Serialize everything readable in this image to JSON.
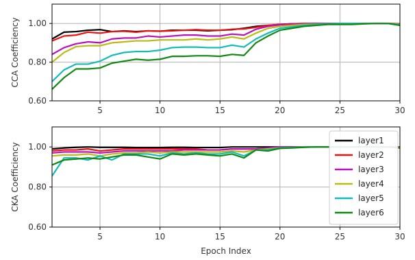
{
  "chart_data": [
    {
      "type": "line",
      "ylabel": "CCA Coefficiency",
      "xlabel": "",
      "xlim": [
        1,
        30
      ],
      "ylim": [
        0.6,
        1.1
      ],
      "xticks": [
        "5",
        "10",
        "15",
        "20",
        "25",
        "30"
      ],
      "xtick_values": [
        5,
        10,
        15,
        20,
        25,
        30
      ],
      "yticks": [
        "0.60",
        "0.80",
        "1.00"
      ],
      "ytick_values": [
        0.6,
        0.8,
        1.0
      ],
      "grid": true,
      "legend": false,
      "x": [
        1,
        2,
        3,
        4,
        5,
        6,
        7,
        8,
        9,
        10,
        11,
        12,
        13,
        14,
        15,
        16,
        17,
        18,
        19,
        20,
        21,
        22,
        23,
        24,
        25,
        26,
        27,
        28,
        29,
        30
      ],
      "series": [
        {
          "name": "layer1",
          "color": "#000000",
          "values": [
            0.92,
            0.955,
            0.958,
            0.965,
            0.968,
            0.958,
            0.962,
            0.958,
            0.962,
            0.96,
            0.965,
            0.965,
            0.965,
            0.962,
            0.965,
            0.968,
            0.975,
            0.985,
            0.99,
            0.995,
            0.998,
            0.999,
            1.0,
            1.0,
            1.0,
            1.0,
            1.0,
            1.0,
            1.0,
            0.998
          ]
        },
        {
          "name": "layer2",
          "color": "#ee1111",
          "values": [
            0.91,
            0.935,
            0.94,
            0.955,
            0.95,
            0.958,
            0.96,
            0.955,
            0.962,
            0.96,
            0.962,
            0.965,
            0.968,
            0.965,
            0.965,
            0.97,
            0.972,
            0.98,
            0.99,
            0.995,
            0.998,
            1.0,
            1.0,
            1.0,
            1.0,
            1.0,
            1.0,
            1.0,
            1.0,
            0.998
          ]
        },
        {
          "name": "layer3",
          "color": "#bb11bb",
          "values": [
            0.84,
            0.875,
            0.895,
            0.905,
            0.9,
            0.92,
            0.925,
            0.925,
            0.935,
            0.93,
            0.935,
            0.94,
            0.94,
            0.935,
            0.935,
            0.945,
            0.94,
            0.97,
            0.985,
            0.993,
            0.996,
            0.998,
            0.999,
            1.0,
            1.0,
            1.0,
            1.0,
            1.0,
            1.0,
            0.997
          ]
        },
        {
          "name": "layer4",
          "color": "#bbbb11",
          "values": [
            0.8,
            0.85,
            0.88,
            0.885,
            0.885,
            0.9,
            0.905,
            0.91,
            0.91,
            0.915,
            0.915,
            0.915,
            0.92,
            0.915,
            0.92,
            0.93,
            0.92,
            0.95,
            0.975,
            0.985,
            0.99,
            0.995,
            0.997,
            0.998,
            1.0,
            1.0,
            1.0,
            1.0,
            1.0,
            0.995
          ]
        },
        {
          "name": "layer5",
          "color": "#11bbbb",
          "values": [
            0.7,
            0.76,
            0.79,
            0.79,
            0.805,
            0.835,
            0.85,
            0.855,
            0.855,
            0.862,
            0.875,
            0.878,
            0.878,
            0.875,
            0.875,
            0.888,
            0.878,
            0.92,
            0.95,
            0.975,
            0.982,
            0.99,
            0.995,
            0.998,
            1.0,
            1.0,
            1.0,
            1.0,
            1.0,
            0.993
          ]
        },
        {
          "name": "layer6",
          "color": "#118811",
          "values": [
            0.66,
            0.72,
            0.765,
            0.765,
            0.77,
            0.795,
            0.805,
            0.815,
            0.81,
            0.815,
            0.83,
            0.83,
            0.833,
            0.833,
            0.83,
            0.84,
            0.835,
            0.9,
            0.935,
            0.965,
            0.975,
            0.985,
            0.99,
            0.995,
            0.995,
            0.995,
            0.998,
            1.0,
            1.0,
            0.99
          ]
        }
      ]
    },
    {
      "type": "line",
      "ylabel": "CKA Coefficiency",
      "xlabel": "Epoch Index",
      "xlim": [
        1,
        30
      ],
      "ylim": [
        0.6,
        1.1
      ],
      "xticks": [
        "5",
        "10",
        "15",
        "20",
        "25",
        "30"
      ],
      "xtick_values": [
        5,
        10,
        15,
        20,
        25,
        30
      ],
      "yticks": [
        "0.60",
        "0.80",
        "1.00"
      ],
      "ytick_values": [
        0.6,
        0.8,
        1.0
      ],
      "grid": true,
      "legend": true,
      "legend_position": "right",
      "x": [
        1,
        2,
        3,
        4,
        5,
        6,
        7,
        8,
        9,
        10,
        11,
        12,
        13,
        14,
        15,
        16,
        17,
        18,
        19,
        20,
        21,
        22,
        23,
        24,
        25,
        26,
        27,
        28,
        29,
        30
      ],
      "series": [
        {
          "name": "layer1",
          "color": "#000000",
          "values": [
            0.99,
            0.995,
            0.998,
            1.0,
            0.998,
            0.998,
            0.998,
            0.997,
            0.997,
            0.997,
            0.998,
            0.998,
            0.997,
            0.997,
            0.997,
            1.0,
            1.0,
            1.0,
            1.0,
            1.0,
            1.0,
            1.0,
            1.0,
            1.0,
            1.0,
            1.0,
            1.0,
            1.0,
            1.0,
            1.0
          ]
        },
        {
          "name": "layer2",
          "color": "#ee1111",
          "values": [
            0.98,
            0.985,
            0.985,
            0.99,
            0.98,
            0.985,
            0.99,
            0.99,
            0.99,
            0.99,
            0.99,
            0.99,
            0.99,
            0.985,
            0.985,
            0.99,
            0.99,
            0.99,
            0.995,
            1.0,
            1.0,
            1.0,
            1.0,
            1.0,
            1.0,
            1.0,
            1.0,
            1.0,
            1.0,
            1.0
          ]
        },
        {
          "name": "layer3",
          "color": "#bb11bb",
          "values": [
            0.97,
            0.975,
            0.975,
            0.975,
            0.97,
            0.975,
            0.98,
            0.98,
            0.98,
            0.98,
            0.98,
            0.985,
            0.985,
            0.985,
            0.985,
            0.99,
            0.99,
            0.99,
            0.995,
            1.0,
            1.0,
            1.0,
            1.0,
            1.0,
            1.0,
            1.0,
            1.0,
            1.0,
            1.0,
            0.995
          ]
        },
        {
          "name": "layer4",
          "color": "#bbbb11",
          "values": [
            0.955,
            0.96,
            0.96,
            0.965,
            0.955,
            0.965,
            0.97,
            0.97,
            0.975,
            0.97,
            0.975,
            0.975,
            0.975,
            0.975,
            0.975,
            0.98,
            0.975,
            0.985,
            0.99,
            0.995,
            0.997,
            1.0,
            1.0,
            1.0,
            1.0,
            1.0,
            1.0,
            1.0,
            1.0,
            0.995
          ]
        },
        {
          "name": "layer5",
          "color": "#11bbbb",
          "values": [
            0.855,
            0.945,
            0.945,
            0.935,
            0.955,
            0.935,
            0.965,
            0.965,
            0.965,
            0.955,
            0.97,
            0.965,
            0.97,
            0.965,
            0.965,
            0.975,
            0.955,
            0.985,
            0.985,
            0.995,
            0.997,
            1.0,
            1.0,
            1.0,
            1.0,
            1.0,
            1.0,
            1.0,
            1.0,
            0.995
          ]
        },
        {
          "name": "layer6",
          "color": "#118811",
          "values": [
            0.91,
            0.935,
            0.94,
            0.945,
            0.94,
            0.95,
            0.96,
            0.96,
            0.95,
            0.94,
            0.965,
            0.96,
            0.965,
            0.96,
            0.955,
            0.965,
            0.945,
            0.985,
            0.98,
            0.993,
            0.995,
            0.998,
            1.0,
            1.0,
            1.0,
            1.0,
            1.0,
            1.0,
            1.0,
            0.995
          ]
        }
      ]
    }
  ]
}
